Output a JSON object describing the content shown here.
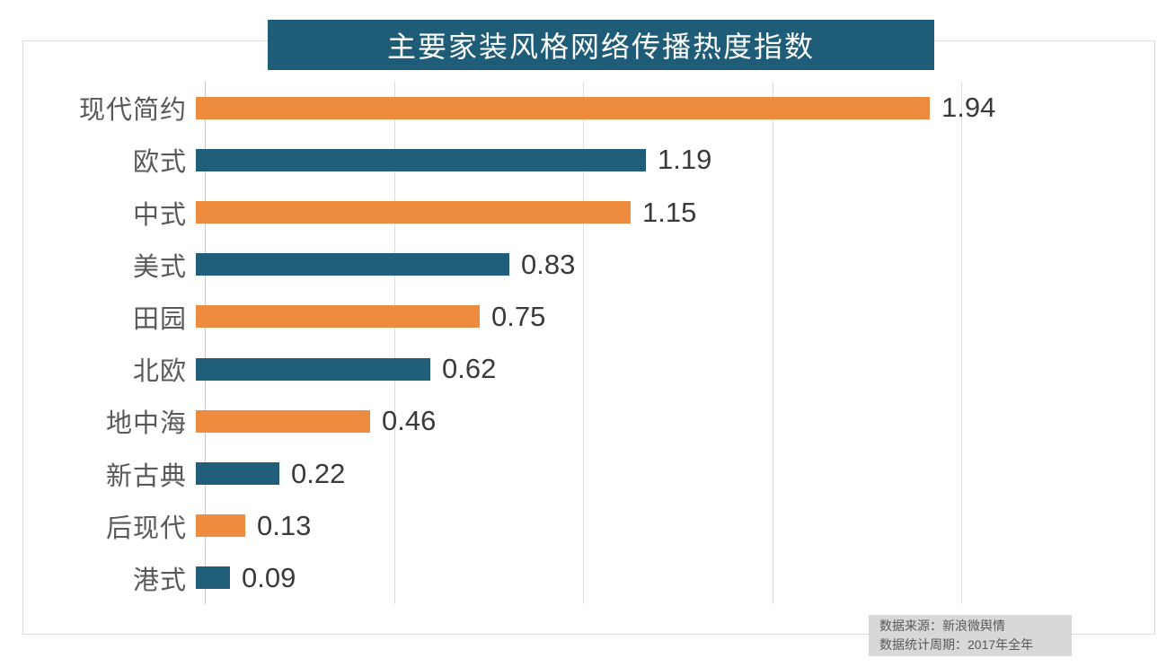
{
  "page": {
    "background_color": "#FFFFFF",
    "border_color": "#D9D9D9"
  },
  "title": {
    "text": "主要家装风格网络传播热度指数",
    "bg_color": "#1F5C78",
    "text_color": "#FFFFFF"
  },
  "chart_data": {
    "type": "bar",
    "orientation": "horizontal",
    "title": "主要家装风格网络传播热度指数",
    "categories": [
      "现代简约",
      "欧式",
      "中式",
      "美式",
      "田园",
      "北欧",
      "地中海",
      "新古典",
      "后现代",
      "港式"
    ],
    "values": [
      1.94,
      1.19,
      1.15,
      0.83,
      0.75,
      0.62,
      0.46,
      0.22,
      0.13,
      0.09
    ],
    "data_labels": [
      "1.94",
      "1.19",
      "1.15",
      "0.83",
      "0.75",
      "0.62",
      "0.46",
      "0.22",
      "0.13",
      "0.09"
    ],
    "bar_colors_alternating": [
      "#ED8C3E",
      "#215E79"
    ],
    "xlim": [
      0,
      2.0
    ],
    "gridline_interval": 0.5,
    "grid": true,
    "legend": "none",
    "category_label_color": "#595959",
    "value_label_color": "#3A3A3A"
  },
  "source_note": {
    "line1": "数据来源：新浪微舆情",
    "line2": "数据统计周期：2017年全年",
    "bg_color": "#D8D8D8",
    "text_color": "#595959"
  }
}
